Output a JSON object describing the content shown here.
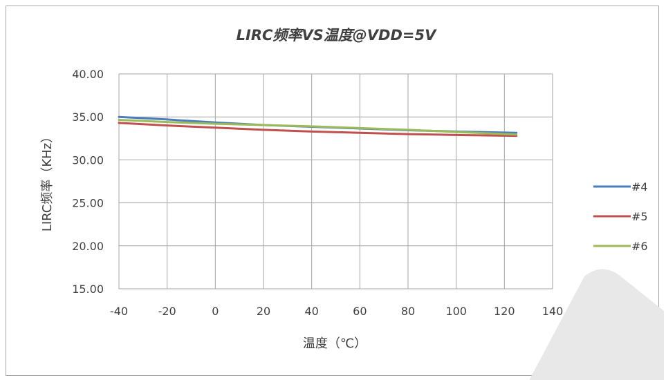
{
  "chart_data": {
    "type": "line",
    "title": "LIRC频率VS温度@VDD=5V",
    "xlabel": "温度（℃）",
    "ylabel": "LIRC频率（KHz）",
    "xlim": [
      -40,
      140
    ],
    "ylim": [
      15,
      40
    ],
    "x_ticks": [
      -40,
      -20,
      0,
      20,
      40,
      60,
      80,
      100,
      120,
      140
    ],
    "y_ticks": [
      15,
      20,
      25,
      30,
      35,
      40
    ],
    "x_tick_labels": [
      "-40",
      "-20",
      "0",
      "20",
      "40",
      "60",
      "80",
      "100",
      "120",
      "140"
    ],
    "y_tick_labels": [
      "15.00",
      "20.00",
      "25.00",
      "30.00",
      "35.00",
      "40.00"
    ],
    "grid": true,
    "legend_position": "right",
    "x": [
      -40,
      -20,
      0,
      20,
      40,
      60,
      80,
      100,
      125
    ],
    "series": [
      {
        "name": "#4",
        "color": "#4a7ebb",
        "values": [
          35.0,
          34.7,
          34.35,
          34.05,
          33.85,
          33.65,
          33.45,
          33.3,
          33.15
        ]
      },
      {
        "name": "#5",
        "color": "#c0504d",
        "values": [
          34.3,
          34.0,
          33.75,
          33.5,
          33.3,
          33.15,
          33.0,
          32.9,
          32.8
        ]
      },
      {
        "name": "#6",
        "color": "#9bbb59",
        "values": [
          34.65,
          34.4,
          34.2,
          34.05,
          33.9,
          33.7,
          33.5,
          33.25,
          32.95
        ]
      }
    ]
  },
  "watermark": {
    "color": "#e8e8e8"
  }
}
